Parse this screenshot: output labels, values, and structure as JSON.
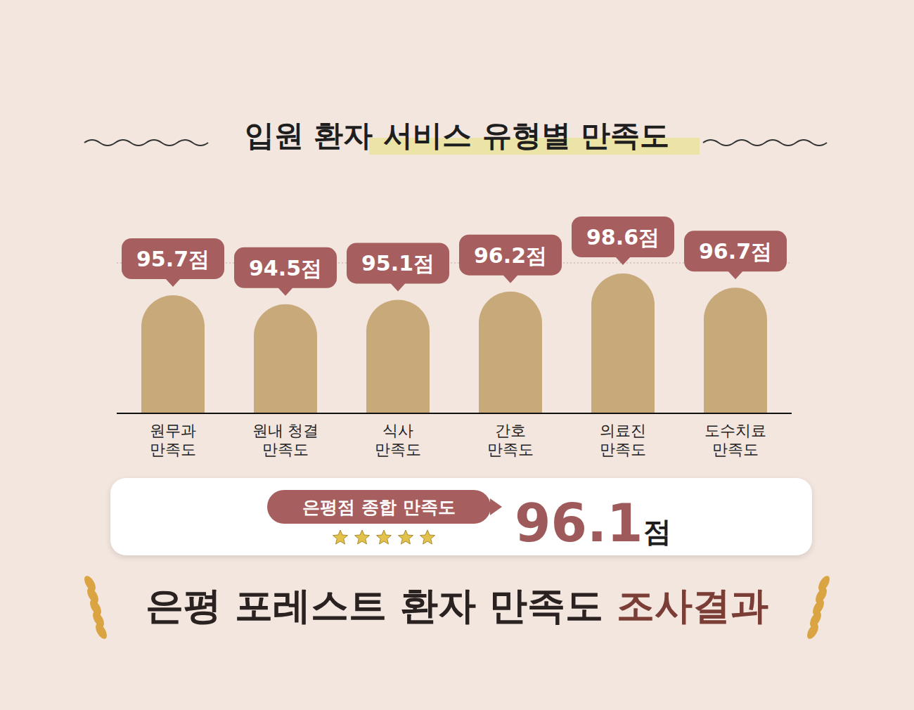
{
  "chart_data": {
    "type": "bar",
    "title": "입원 환자 서비스 유형별 만족도",
    "categories": [
      "원무과 만족도",
      "원내 청결 만족도",
      "식사 만족도",
      "간호 만족도",
      "의료진 만족도",
      "도수치료 만족도"
    ],
    "values": [
      95.7,
      94.5,
      95.1,
      96.2,
      98.6,
      96.7
    ],
    "value_labels": [
      "95.7점",
      "94.5점",
      "95.1점",
      "96.2점",
      "98.6점",
      "96.7점"
    ],
    "color": "#c8a97a",
    "ylim": [
      80,
      100
    ],
    "yticks": [
      80,
      85,
      90,
      95,
      100
    ],
    "grid": true,
    "data_labels": true,
    "tick_labels": "x"
  },
  "summary": {
    "label": "은평점 종합 만족도",
    "value": 96.1,
    "value_label": "96.1점"
  },
  "footer": [
    "은평 포레스트 환자 만족도",
    "조사결과"
  ]
}
